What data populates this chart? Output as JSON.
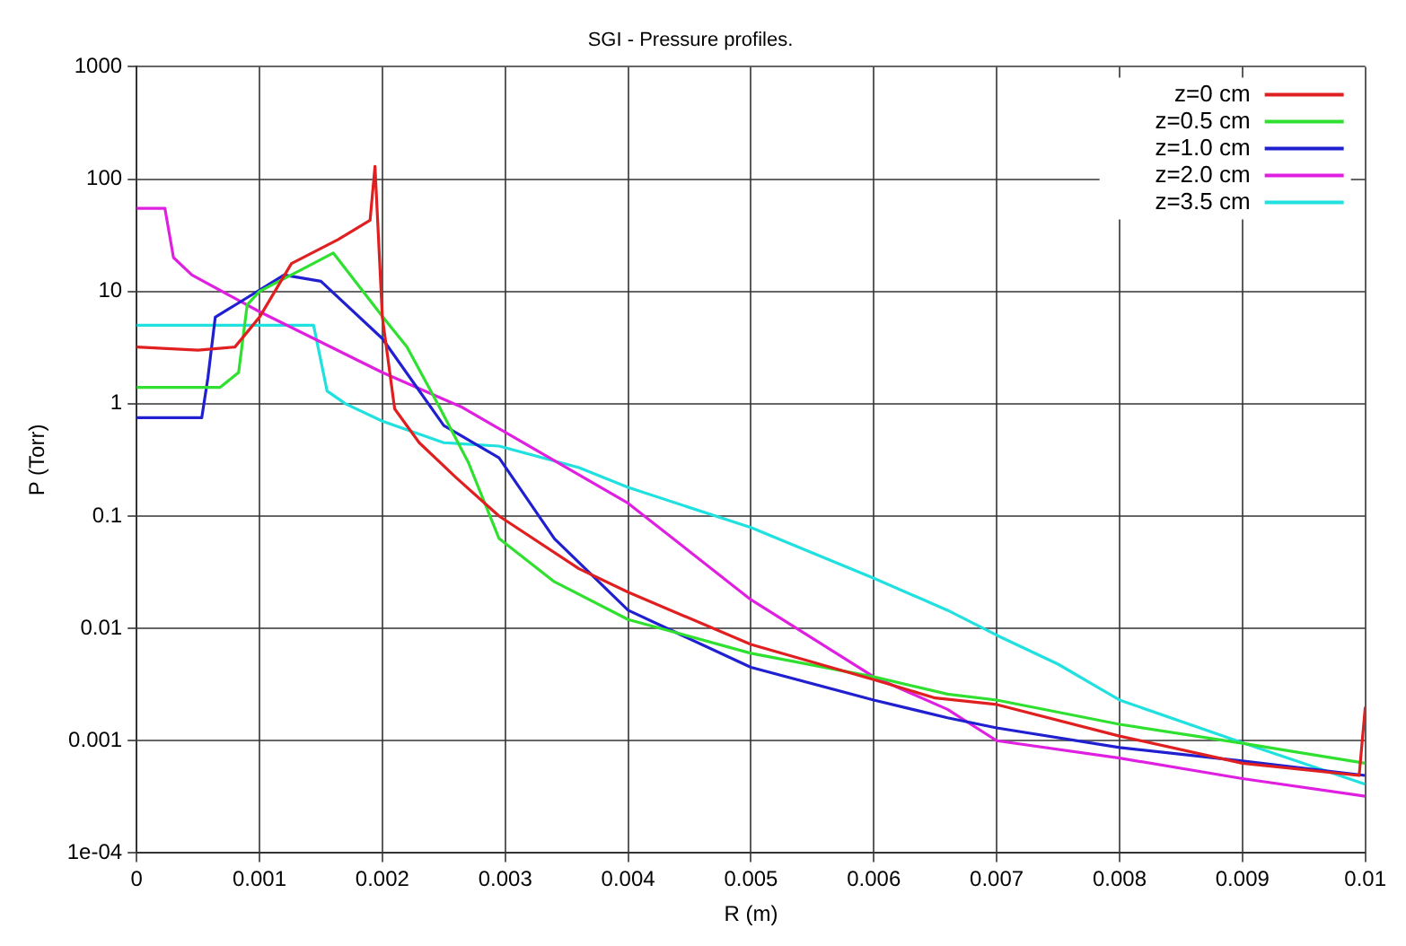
{
  "chart_data": {
    "type": "line",
    "title": "SGI - Pressure profiles.",
    "xlabel": "R (m)",
    "ylabel": "P (Torr)",
    "log": "y",
    "grid": true,
    "legend": "top right",
    "marker": "none",
    "line_style": "solid",
    "xlim": [
      0,
      0.01
    ],
    "xticks": [
      0,
      0.001,
      0.002,
      0.003,
      0.004,
      0.005,
      0.006,
      0.007,
      0.008,
      0.009,
      0.01
    ],
    "ylim": [
      0.0001,
      1000
    ],
    "yticks": [
      {
        "value": 0.0001,
        "label": "1e-04"
      },
      0.001,
      0.01,
      0.1,
      1,
      10,
      100,
      1000
    ],
    "series": [
      {
        "name": "z=0 cm",
        "color": "#e02020",
        "x": [
          0,
          0.0005,
          0.0008,
          0.001,
          0.00126,
          0.00164,
          0.0019,
          0.00194,
          0.002,
          0.0021,
          0.0023,
          0.0026,
          0.00295,
          0.0036,
          0.004,
          0.005,
          0.006,
          0.0065,
          0.007,
          0.008,
          0.009,
          0.00995,
          0.01
        ],
        "values": [
          3.2,
          3.0,
          3.2,
          5.9,
          17.7,
          29,
          43,
          130,
          5.9,
          0.9,
          0.45,
          0.22,
          0.1,
          0.034,
          0.021,
          0.0072,
          0.0035,
          0.0024,
          0.0021,
          0.0011,
          0.00063,
          0.00049,
          0.002
        ]
      },
      {
        "name": "z=0.5 cm",
        "color": "#30e030",
        "x": [
          0,
          0.00068,
          0.00083,
          0.0009,
          0.001,
          0.00136,
          0.0016,
          0.00174,
          0.002,
          0.0022,
          0.00245,
          0.0027,
          0.00295,
          0.0034,
          0.004,
          0.005,
          0.006,
          0.0066,
          0.007,
          0.008,
          0.009,
          0.01
        ],
        "values": [
          1.4,
          1.4,
          1.9,
          7.6,
          10,
          16,
          22,
          14,
          6,
          3.2,
          1,
          0.3,
          0.063,
          0.026,
          0.012,
          0.006,
          0.0037,
          0.0026,
          0.0023,
          0.0014,
          0.00095,
          0.00063
        ]
      },
      {
        "name": "z=1.0 cm",
        "color": "#2020d0",
        "x": [
          0,
          0.00053,
          0.00058,
          0.00064,
          0.00083,
          0.0012,
          0.0015,
          0.002,
          0.0025,
          0.00295,
          0.0034,
          0.004,
          0.005,
          0.006,
          0.0066,
          0.007,
          0.008,
          0.009,
          0.01
        ],
        "values": [
          0.75,
          0.75,
          1.7,
          5.9,
          7.9,
          14,
          12.3,
          3.8,
          0.64,
          0.33,
          0.063,
          0.0145,
          0.0045,
          0.0023,
          0.0016,
          0.0013,
          0.00087,
          0.00066,
          0.00049
        ]
      },
      {
        "name": "z=2.0 cm",
        "color": "#e020e0",
        "x": [
          0,
          0.00023,
          0.0003,
          0.00045,
          0.001,
          0.002,
          0.00265,
          0.00295,
          0.004,
          0.005,
          0.006,
          0.0066,
          0.007,
          0.008,
          0.009,
          0.01
        ],
        "values": [
          55,
          55,
          20,
          14,
          6.6,
          1.9,
          0.93,
          0.6,
          0.13,
          0.018,
          0.0037,
          0.0019,
          0.001,
          0.0007,
          0.00046,
          0.00032
        ]
      },
      {
        "name": "z=3.5 cm",
        "color": "#20e0e0",
        "x": [
          0,
          0.00144,
          0.00155,
          0.0017,
          0.002,
          0.0025,
          0.00295,
          0.0036,
          0.004,
          0.005,
          0.006,
          0.0066,
          0.007,
          0.0075,
          0.008,
          0.009,
          0.01
        ],
        "values": [
          5.0,
          5.0,
          1.3,
          1.0,
          0.7,
          0.45,
          0.42,
          0.27,
          0.18,
          0.079,
          0.028,
          0.0145,
          0.0087,
          0.0048,
          0.0023,
          0.00096,
          0.00041
        ]
      }
    ]
  }
}
